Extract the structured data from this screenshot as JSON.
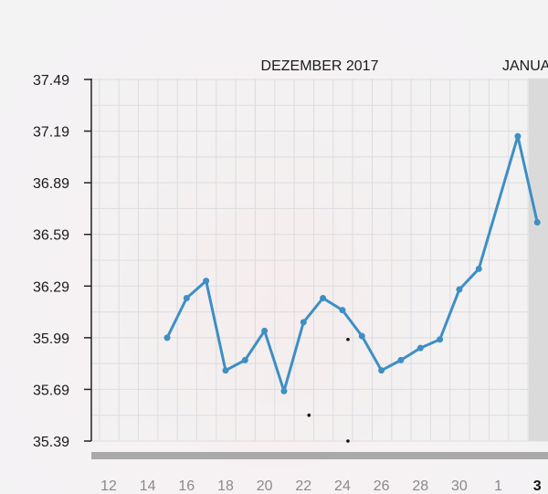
{
  "chart_data": {
    "type": "line",
    "months": [
      {
        "label": "DEZEMBER 2017",
        "anchor_day": 0
      },
      {
        "label": "JANUA",
        "anchor_day": 0
      }
    ],
    "x_axis": {
      "tick_labels": [
        "12",
        "14",
        "16",
        "18",
        "20",
        "22",
        "24",
        "26",
        "28",
        "30",
        "1",
        "3"
      ],
      "current_label": "3"
    },
    "y_axis": {
      "tick_labels": [
        "37.49",
        "37.19",
        "36.89",
        "36.59",
        "36.29",
        "35.99",
        "35.69",
        "35.39"
      ],
      "min": 35.39,
      "max": 37.49
    },
    "series": [
      {
        "color": "#3d8fc4",
        "points": [
          {
            "x": "Dec 15",
            "y": 35.99
          },
          {
            "x": "Dec 16",
            "y": 36.22
          },
          {
            "x": "Dec 17",
            "y": 36.32
          },
          {
            "x": "Dec 18",
            "y": 35.8
          },
          {
            "x": "Dec 19",
            "y": 35.86
          },
          {
            "x": "Dec 20",
            "y": 36.03
          },
          {
            "x": "Dec 21",
            "y": 35.68
          },
          {
            "x": "Dec 22",
            "y": 36.08
          },
          {
            "x": "Dec 23",
            "y": 36.22
          },
          {
            "x": "Dec 24",
            "y": 36.15
          },
          {
            "x": "Dec 25",
            "y": 36.0
          },
          {
            "x": "Dec 26",
            "y": 35.8
          },
          {
            "x": "Dec 27",
            "y": 35.86
          },
          {
            "x": "Dec 28",
            "y": 35.93
          },
          {
            "x": "Dec 29",
            "y": 35.98
          },
          {
            "x": "Dec 30",
            "y": 36.27
          },
          {
            "x": "Dec 31",
            "y": 36.39
          },
          {
            "x": "Jan 2",
            "y": 37.16
          },
          {
            "x": "Jan 3",
            "y": 36.66
          }
        ]
      }
    ],
    "markers": [
      {
        "x": "Dec 22",
        "y": 35.54
      },
      {
        "x": "Dec 24",
        "y": 35.98
      },
      {
        "x": "Dec 24",
        "y": 35.39
      }
    ],
    "grid": true,
    "colors": {
      "line": "#3d8fc4",
      "grid": "#dcdcdf",
      "axis": "#222222",
      "scrollbar": "#a9a9a9",
      "highlight_column": "#dadadb"
    }
  }
}
